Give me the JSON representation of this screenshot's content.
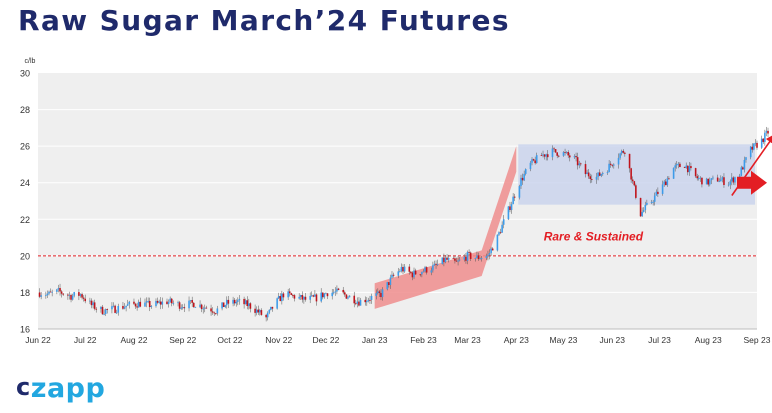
{
  "header": {
    "title": "Raw Sugar March’24 Futures"
  },
  "logo": {
    "c": "c",
    "rest": "zapp",
    "colors": {
      "c": "#1f2a6b",
      "rest": "#22a7e0"
    }
  },
  "chart_data": {
    "type": "candlestick",
    "title": "Raw Sugar March’24 Futures",
    "ylabel": "c/lb",
    "ylim": [
      16,
      30
    ],
    "yticks": [
      16,
      18,
      20,
      22,
      24,
      26,
      28,
      30
    ],
    "xlim": [
      "2022-06-01",
      "2023-09-01"
    ],
    "xticks": [
      "Jun 22",
      "Jul 22",
      "Aug 22",
      "Sep 22",
      "Oct 22",
      "Nov 22",
      "Dec 22",
      "Jan 23",
      "Feb 23",
      "Mar 23",
      "Apr 23",
      "May 23",
      "Jun 23",
      "Jul 23",
      "Aug 23",
      "Sep 23"
    ],
    "grid": "horizontal",
    "colors": {
      "up": "#3d9be9",
      "down": "#c0141c",
      "background": "#efefef",
      "gridline": "#ffffff",
      "annotation": "#e31e24",
      "range_box": "#c8d2ec",
      "trend_band": "#ef8d8d"
    },
    "close_path": [
      [
        "2022-06-01",
        18.0
      ],
      [
        "2022-06-08",
        17.9
      ],
      [
        "2022-06-14",
        18.05
      ],
      [
        "2022-06-22",
        17.8
      ],
      [
        "2022-06-28",
        17.9
      ],
      [
        "2022-07-05",
        17.3
      ],
      [
        "2022-07-12",
        17.0
      ],
      [
        "2022-07-20",
        17.1
      ],
      [
        "2022-07-28",
        17.3
      ],
      [
        "2022-08-05",
        17.4
      ],
      [
        "2022-08-12",
        17.3
      ],
      [
        "2022-08-22",
        17.5
      ],
      [
        "2022-08-31",
        17.3
      ],
      [
        "2022-09-08",
        17.4
      ],
      [
        "2022-09-15",
        17.2
      ],
      [
        "2022-09-22",
        17.0
      ],
      [
        "2022-09-29",
        17.4
      ],
      [
        "2022-10-06",
        17.5
      ],
      [
        "2022-10-13",
        17.3
      ],
      [
        "2022-10-18",
        17.0
      ],
      [
        "2022-10-24",
        16.6
      ],
      [
        "2022-10-29",
        17.3
      ],
      [
        "2022-11-04",
        17.9
      ],
      [
        "2022-11-10",
        17.8
      ],
      [
        "2022-11-18",
        17.6
      ],
      [
        "2022-11-25",
        17.7
      ],
      [
        "2022-12-02",
        18.0
      ],
      [
        "2022-12-09",
        18.0
      ],
      [
        "2022-12-15",
        17.8
      ],
      [
        "2022-12-22",
        17.5
      ],
      [
        "2022-12-29",
        17.7
      ],
      [
        "2023-01-05",
        17.9
      ],
      [
        "2023-01-12",
        18.8
      ],
      [
        "2023-01-18",
        19.3
      ],
      [
        "2023-01-25",
        19.0
      ],
      [
        "2023-02-01",
        19.2
      ],
      [
        "2023-02-08",
        19.4
      ],
      [
        "2023-02-15",
        19.8
      ],
      [
        "2023-02-22",
        19.6
      ],
      [
        "2023-03-01",
        20.0
      ],
      [
        "2023-03-07",
        19.9
      ],
      [
        "2023-03-14",
        20.0
      ],
      [
        "2023-03-20",
        21.0
      ],
      [
        "2023-03-27",
        22.5
      ],
      [
        "2023-04-03",
        24.0
      ],
      [
        "2023-04-10",
        25.0
      ],
      [
        "2023-04-17",
        25.5
      ],
      [
        "2023-04-24",
        25.7
      ],
      [
        "2023-05-01",
        25.6
      ],
      [
        "2023-05-08",
        25.3
      ],
      [
        "2023-05-15",
        24.5
      ],
      [
        "2023-05-22",
        24.3
      ],
      [
        "2023-05-29",
        24.8
      ],
      [
        "2023-06-05",
        25.5
      ],
      [
        "2023-06-09",
        25.8
      ],
      [
        "2023-06-14",
        24.0
      ],
      [
        "2023-06-19",
        22.3
      ],
      [
        "2023-06-26",
        23.0
      ],
      [
        "2023-07-03",
        23.8
      ],
      [
        "2023-07-10",
        24.8
      ],
      [
        "2023-07-17",
        25.0
      ],
      [
        "2023-07-24",
        24.3
      ],
      [
        "2023-07-31",
        24.0
      ],
      [
        "2023-08-07",
        24.2
      ],
      [
        "2023-08-14",
        24.0
      ],
      [
        "2023-08-21",
        24.5
      ],
      [
        "2023-08-28",
        25.8
      ],
      [
        "2023-09-04",
        26.3
      ],
      [
        "2023-09-10",
        27.0
      ]
    ],
    "annotations": [
      {
        "type": "hline",
        "y": 20,
        "style": "dashed",
        "label": "Rare & Sustained",
        "label_x": "2023-05-20",
        "label_y": 20.5
      },
      {
        "type": "rect",
        "x": [
          "2023-04-01",
          "2023-09-01"
        ],
        "y": [
          22.8,
          26.1
        ]
      },
      {
        "type": "band",
        "points": [
          [
            "2023-01-01",
            17.8
          ],
          [
            "2023-03-10",
            19.6
          ],
          [
            "2023-04-01",
            25.3
          ]
        ],
        "width": 1.4
      },
      {
        "type": "arrow",
        "from": [
          "2023-08-16",
          23.3
        ],
        "to": [
          "2023-09-12",
          26.6
        ]
      },
      {
        "type": "text",
        "text": "??",
        "x": "2023-09-12",
        "y": 27.2
      },
      {
        "type": "arrow-right",
        "y": 24.0,
        "position": "right-edge"
      }
    ]
  }
}
